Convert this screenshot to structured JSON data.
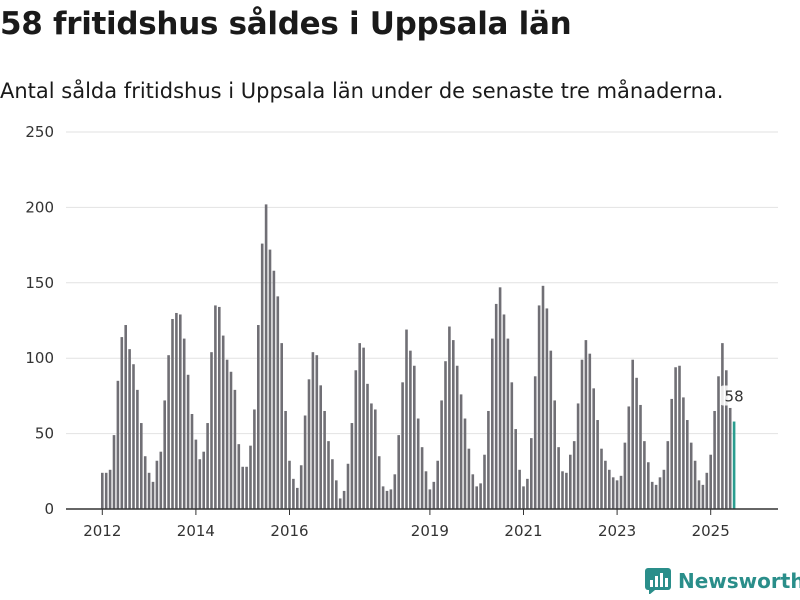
{
  "title": "58 fritidshus såldes i Uppsala län",
  "subtitle": "Antal sålda fritidshus i Uppsala län under de senaste tre månaderna.",
  "brand": {
    "name": "Newsworthy",
    "icon": "newsworthy-logo-icon",
    "color": "#2a8e8a"
  },
  "colors": {
    "bar": "#706f75",
    "highlight": "#2a9d8f",
    "grid": "#e2e2e2",
    "axis": "#333333"
  },
  "chart_data": {
    "type": "bar",
    "title": "58 fritidshus såldes i Uppsala län",
    "xlabel": "",
    "ylabel": "",
    "ylim": [
      0,
      250
    ],
    "yticks": [
      0,
      50,
      100,
      150,
      200,
      250
    ],
    "grid": true,
    "start": {
      "year": 2012,
      "month": 1
    },
    "xtick_labels": [
      {
        "year": 2012,
        "label": "2012"
      },
      {
        "year": 2014,
        "label": "2014"
      },
      {
        "year": 2016,
        "label": "2016"
      },
      {
        "year": 2019,
        "label": "2019"
      },
      {
        "year": 2021,
        "label": "2021"
      },
      {
        "year": 2023,
        "label": "2023"
      },
      {
        "year": 2025,
        "label": "2025"
      }
    ],
    "values": [
      24,
      24,
      26,
      49,
      85,
      114,
      122,
      106,
      96,
      79,
      57,
      35,
      24,
      18,
      32,
      38,
      72,
      102,
      126,
      130,
      129,
      113,
      89,
      63,
      46,
      33,
      38,
      57,
      104,
      135,
      134,
      115,
      99,
      91,
      79,
      43,
      28,
      28,
      42,
      66,
      122,
      176,
      202,
      172,
      158,
      141,
      110,
      65,
      32,
      20,
      14,
      29,
      62,
      86,
      104,
      102,
      82,
      65,
      45,
      33,
      19,
      7,
      12,
      30,
      57,
      92,
      110,
      107,
      83,
      70,
      66,
      35,
      15,
      12,
      13,
      23,
      49,
      84,
      119,
      105,
      95,
      60,
      41,
      25,
      13,
      18,
      32,
      72,
      98,
      121,
      112,
      95,
      76,
      60,
      40,
      23,
      15,
      17,
      36,
      65,
      113,
      136,
      147,
      129,
      113,
      84,
      53,
      26,
      15,
      20,
      47,
      88,
      135,
      148,
      133,
      105,
      72,
      41,
      25,
      24,
      36,
      45,
      70,
      99,
      112,
      103,
      80,
      59,
      40,
      32,
      26,
      21,
      19,
      22,
      44,
      68,
      99,
      87,
      69,
      45,
      31,
      18,
      16,
      21,
      26,
      45,
      73,
      94,
      95,
      74,
      59,
      44,
      32,
      19,
      16,
      24,
      36,
      65,
      88,
      110,
      92,
      67,
      58
    ],
    "highlight_label": "58"
  }
}
